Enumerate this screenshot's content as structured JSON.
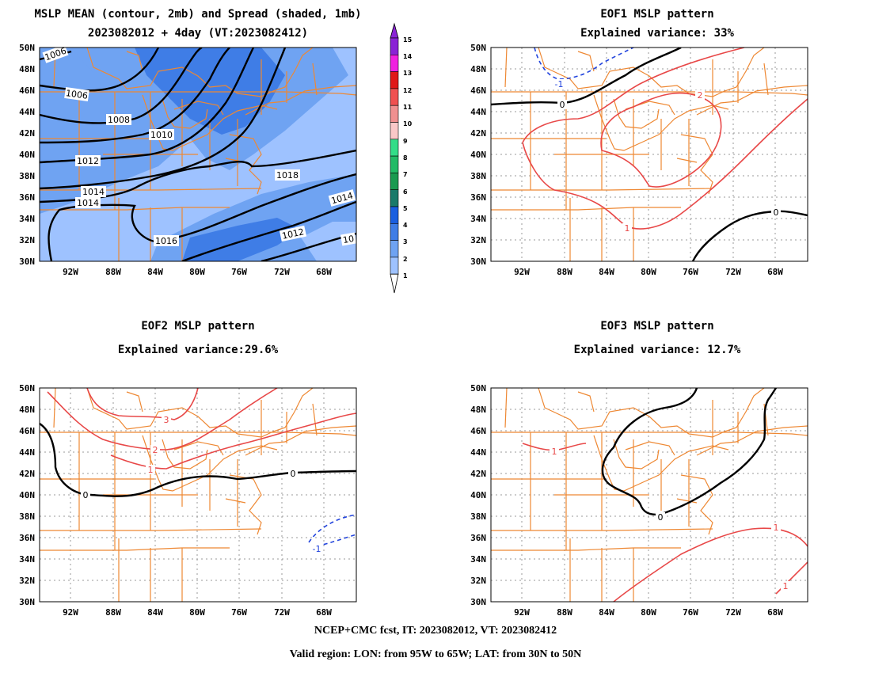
{
  "panels": [
    {
      "id": "mean",
      "title1": "MSLP MEAN (contour, 2mb) and Spread (shaded, 1mb)",
      "title2": "2023082012 + 4day (VT:2023082412)"
    },
    {
      "id": "eof1",
      "title1": "EOF1 MSLP pattern",
      "title2": "Explained variance: 33%"
    },
    {
      "id": "eof2",
      "title1": "EOF2 MSLP pattern",
      "title2": "Explained variance:29.6%"
    },
    {
      "id": "eof3",
      "title1": "EOF3 MSLP pattern",
      "title2": "Explained variance: 12.7%"
    }
  ],
  "axes": {
    "lat_labels": [
      "50N",
      "48N",
      "46N",
      "44N",
      "42N",
      "40N",
      "38N",
      "36N",
      "34N",
      "32N",
      "30N"
    ],
    "lon_labels": [
      "92W",
      "88W",
      "84W",
      "80W",
      "76W",
      "72W",
      "68W"
    ]
  },
  "colorbar": {
    "levels": [
      "1",
      "2",
      "3",
      "4",
      "5",
      "6",
      "7",
      "8",
      "9",
      "10",
      "11",
      "12",
      "13",
      "14",
      "15"
    ],
    "colors": [
      "#c8dcff",
      "#9ec2ff",
      "#6fa3f2",
      "#3f7de6",
      "#1a5fe0",
      "#1a7a6a",
      "#1a9a50",
      "#22bb66",
      "#33dd88",
      "#fac8c8",
      "#f09090",
      "#f05050",
      "#e01818",
      "#f020e0",
      "#8a22d6"
    ]
  },
  "mean_contour_labels": [
    "1006",
    "1006",
    "1008",
    "1010",
    "1012",
    "1014",
    "1014",
    "1016",
    "1018",
    "1012",
    "1014",
    "10"
  ],
  "eof1_labels": [
    "-1",
    "0",
    "2",
    "1",
    "0"
  ],
  "eof2_labels": [
    "3",
    "2",
    "1",
    "0",
    "0",
    "-1"
  ],
  "eof3_labels": [
    "1",
    "0",
    "1",
    "1"
  ],
  "footer": {
    "line1": "NCEP+CMC fcst, IT: 2023082012, VT: 2023082412",
    "line2": "Valid region: LON: from 95W to 65W; LAT: from 30N to 50N"
  },
  "colors": {
    "state_lines": "#ee8833",
    "positive_contour": "#e84848",
    "negative_contour": "#2244dd",
    "zero_contour": "#000000"
  }
}
